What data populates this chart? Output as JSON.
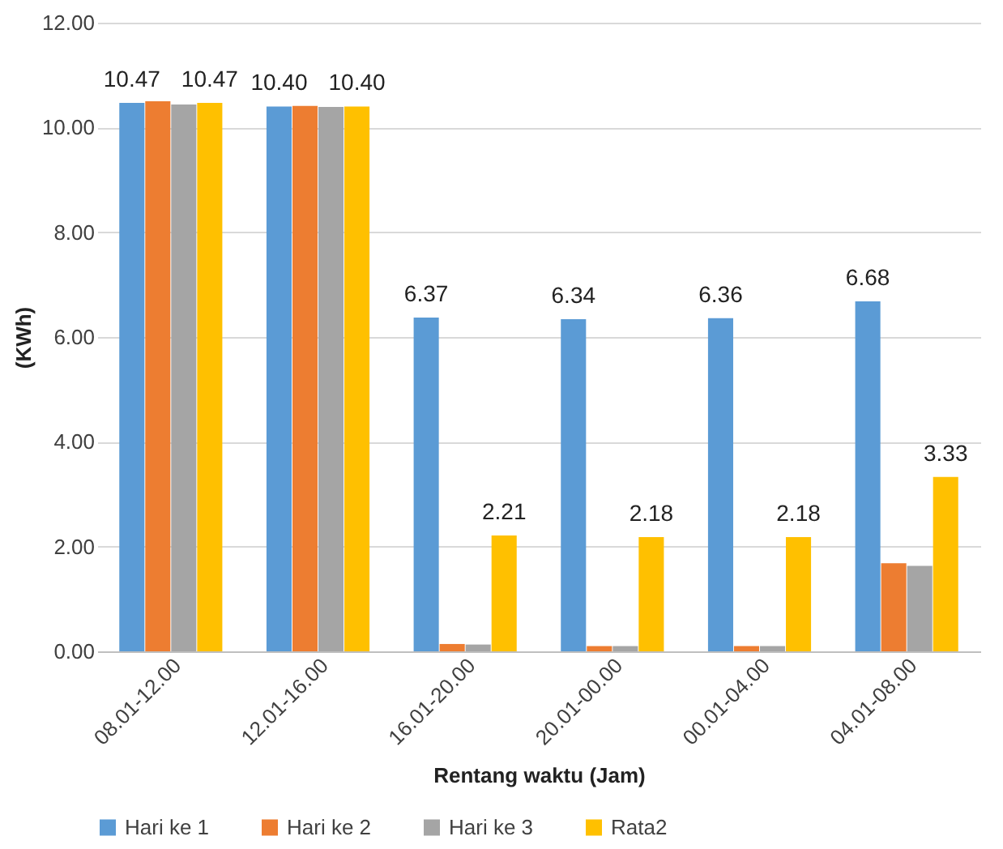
{
  "chart_data": {
    "type": "bar",
    "xlabel": "Rentang waktu (Jam)",
    "ylabel": "(KWh)",
    "categories": [
      "08.01-12.00",
      "12.01-16.00",
      "16.01-20.00",
      "20.01-00.00",
      "00.01-04.00",
      "04.01-08.00"
    ],
    "series": [
      {
        "name": "Hari ke 1",
        "color": "#5b9bd5",
        "values": [
          10.47,
          10.4,
          6.37,
          6.34,
          6.36,
          6.68
        ],
        "value_labels": [
          "10.47",
          "10.40",
          "6.37",
          "6.34",
          "6.36",
          "6.68"
        ]
      },
      {
        "name": "Hari ke 2",
        "color": "#ed7d31",
        "values": [
          10.5,
          10.41,
          0.14,
          0.1,
          0.1,
          1.68
        ]
      },
      {
        "name": "Hari ke 3",
        "color": "#a5a5a5",
        "values": [
          10.44,
          10.39,
          0.13,
          0.1,
          0.1,
          1.63
        ]
      },
      {
        "name": "Rata2",
        "color": "#ffc000",
        "values": [
          10.47,
          10.4,
          2.21,
          2.18,
          2.18,
          3.33
        ],
        "value_labels": [
          "10.47",
          "10.40",
          "2.21",
          "2.18",
          "2.18",
          "3.33"
        ]
      }
    ],
    "ylim": [
      0,
      12
    ],
    "yticks": [
      {
        "value": 0,
        "label": "0.00"
      },
      {
        "value": 2,
        "label": "2.00"
      },
      {
        "value": 4,
        "label": "4.00"
      },
      {
        "value": 6,
        "label": "6.00"
      },
      {
        "value": 8,
        "label": "8.00"
      },
      {
        "value": 10,
        "label": "10.00"
      },
      {
        "value": 12,
        "label": "12.00"
      }
    ],
    "grid": "y",
    "legend": "bottom"
  }
}
